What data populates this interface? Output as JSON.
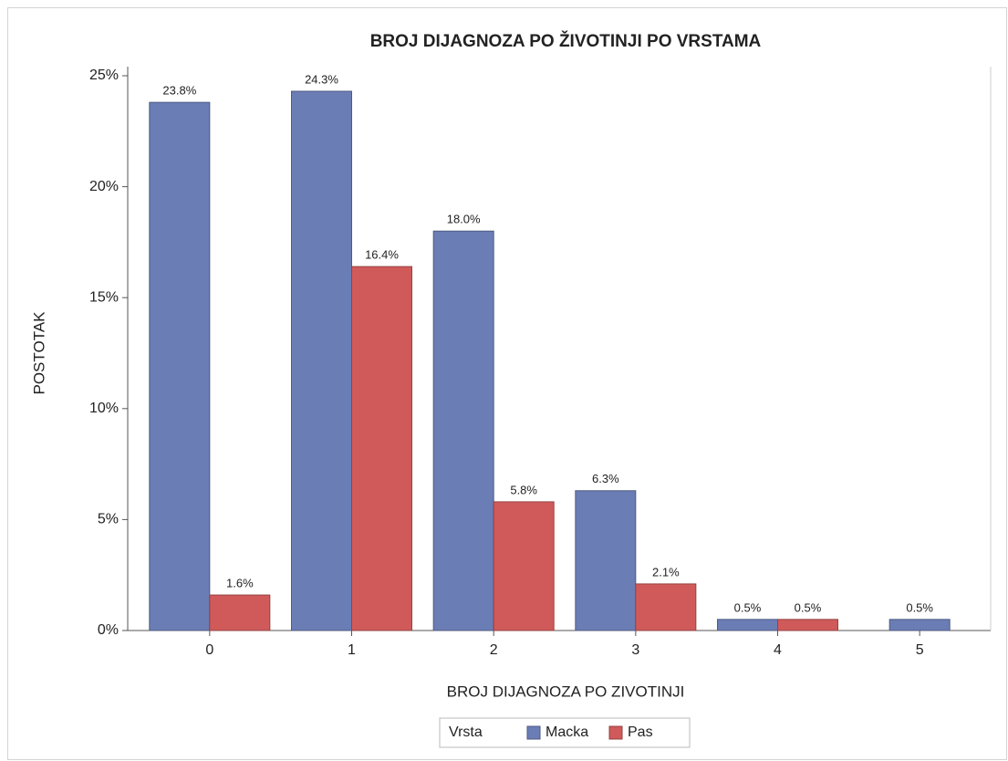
{
  "chart_data": {
    "type": "bar",
    "title": "BROJ DIJAGNOZA PO ŽIVOTINJI PO VRSTAMA",
    "xlabel": "BROJ DIJAGNOZA PO ZIVOTINJI",
    "ylabel": "POSTOTAK",
    "legend_title": "Vrsta",
    "legend": "bottom",
    "categories": [
      "0",
      "1",
      "2",
      "3",
      "4",
      "5"
    ],
    "series": [
      {
        "name": "Macka",
        "color": "#6b7db5",
        "values": [
          23.8,
          24.3,
          18.0,
          6.3,
          0.5,
          0.5
        ],
        "value_labels": [
          "23.8%",
          "24.3%",
          "18.0%",
          "6.3%",
          "0.5%",
          "0.5%"
        ]
      },
      {
        "name": "Pas",
        "color": "#d05a5a",
        "values": [
          1.6,
          16.4,
          5.8,
          2.1,
          0.5,
          null
        ],
        "value_labels": [
          "1.6%",
          "16.4%",
          "5.8%",
          "2.1%",
          "0.5%",
          null
        ]
      }
    ],
    "ylim": [
      0,
      25
    ],
    "yticks": [
      {
        "value": 0,
        "label": "0%"
      },
      {
        "value": 5,
        "label": "5%"
      },
      {
        "value": 10,
        "label": "10%"
      },
      {
        "value": 15,
        "label": "15%"
      },
      {
        "value": 20,
        "label": "20%"
      },
      {
        "value": 25,
        "label": "25%"
      }
    ],
    "grid": false
  }
}
